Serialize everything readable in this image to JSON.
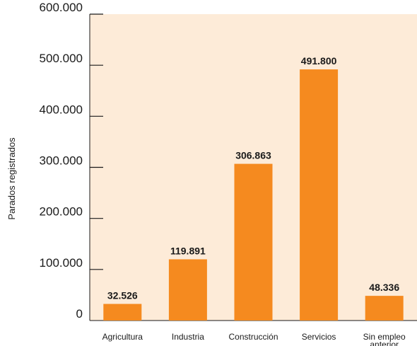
{
  "chart_data": {
    "type": "bar",
    "categories": [
      "Agricultura",
      "Industria",
      "Construcción",
      "Servicios",
      "Sin empleo anterior"
    ],
    "category_lines": [
      [
        "Agricultura"
      ],
      [
        "Industria"
      ],
      [
        "Construcción"
      ],
      [
        "Servicios"
      ],
      [
        "Sin empleo",
        "anterior"
      ]
    ],
    "values": [
      32526,
      119891,
      306863,
      491800,
      48336
    ],
    "value_labels": [
      "32.526",
      "119.891",
      "306.863",
      "491.800",
      "48.336"
    ],
    "ylabel": "Parados registrados",
    "ylim": [
      0,
      600000
    ],
    "yticks": [
      0,
      100000,
      200000,
      300000,
      400000,
      500000,
      600000
    ],
    "ytick_labels": [
      "0",
      "100.000",
      "200.000",
      "300.000",
      "400.000",
      "500.000",
      "600.000"
    ],
    "grid": false,
    "colors": {
      "bar": "#f58a1f",
      "plot_background": "#fdebd8",
      "axis": "#1a1a1a"
    }
  }
}
